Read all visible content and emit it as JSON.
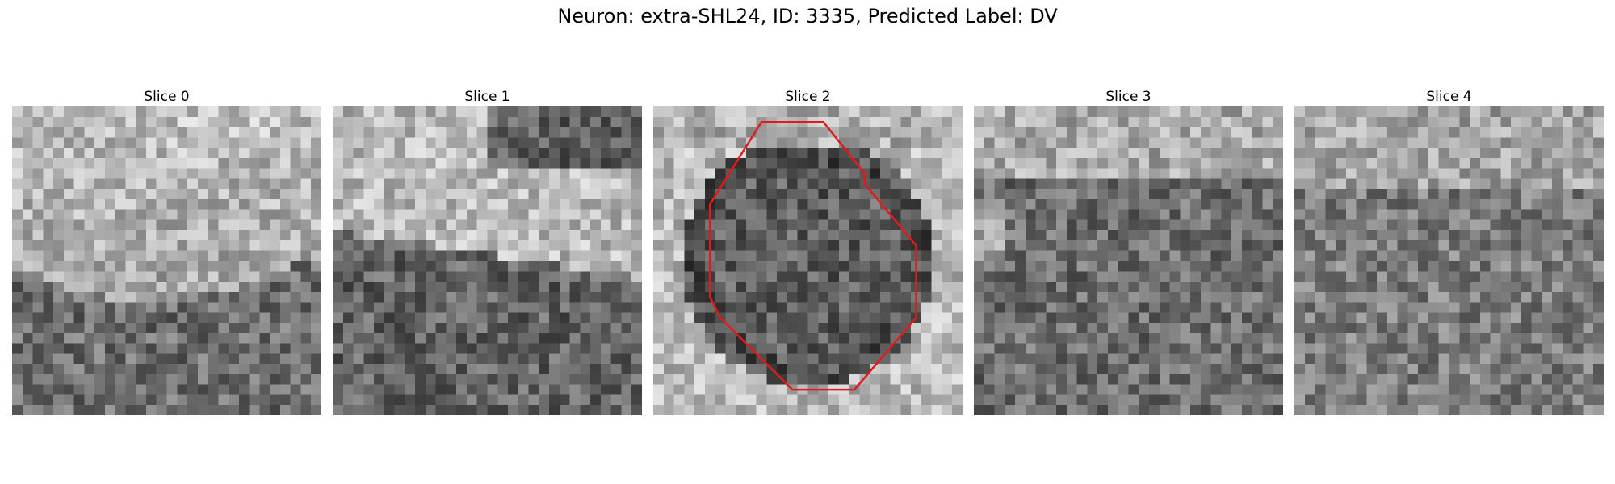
{
  "figure": {
    "title": "Neuron: extra-SHL24, ID: 3335, Predicted Label: DV"
  },
  "slices": [
    {
      "label": "Slice 0",
      "pattern": "bright-top-dark-bottom",
      "contour": false
    },
    {
      "label": "Slice 1",
      "pattern": "bright-band-dark-lower",
      "contour": false
    },
    {
      "label": "Slice 2",
      "pattern": "dark-center-bright-surround",
      "contour": true
    },
    {
      "label": "Slice 3",
      "pattern": "mid-top-dark-lower",
      "contour": false
    },
    {
      "label": "Slice 4",
      "pattern": "mottled-mid",
      "contour": false
    }
  ],
  "contour": {
    "color": "#e31a1c",
    "polygon_pixels": [
      [
        10.5,
        1.5
      ],
      [
        16.5,
        1.5
      ],
      [
        20.5,
        6.5
      ],
      [
        20.5,
        7.5
      ],
      [
        25.5,
        13.5
      ],
      [
        25.5,
        20.5
      ],
      [
        19.5,
        27.5
      ],
      [
        13.5,
        27.5
      ],
      [
        6.5,
        20.5
      ],
      [
        5.5,
        18.5
      ],
      [
        5.5,
        9.5
      ]
    ]
  },
  "image_grid_size": 30
}
